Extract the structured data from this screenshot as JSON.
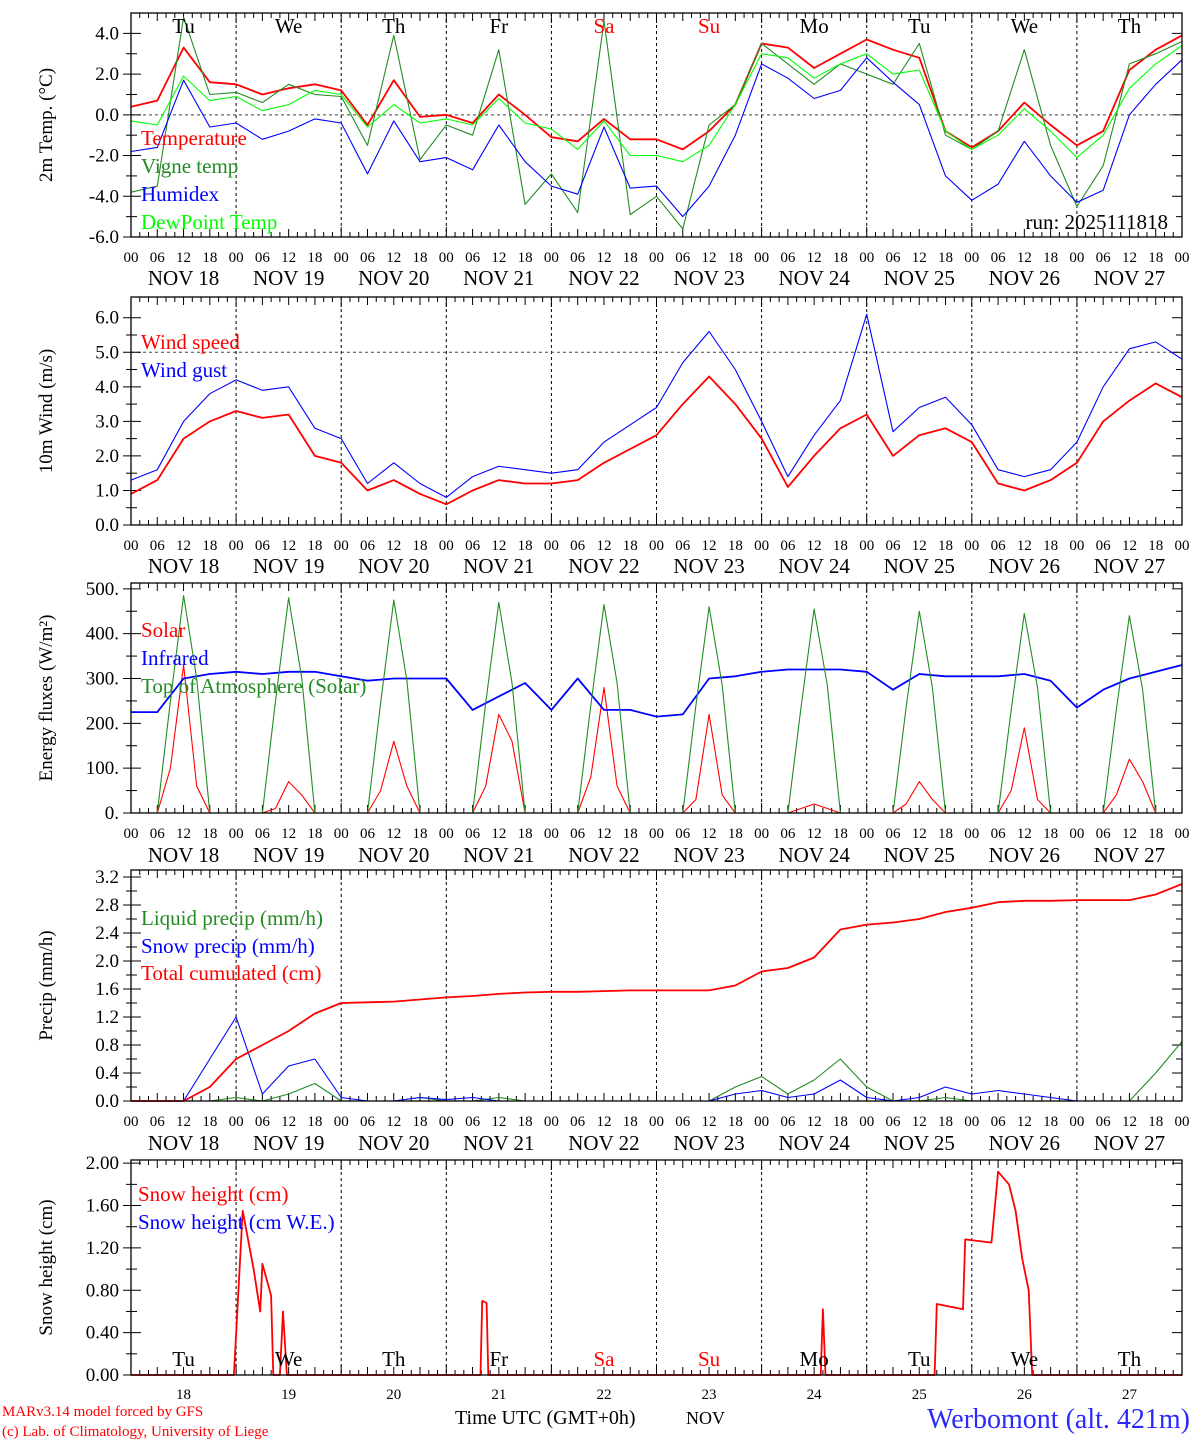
{
  "x_axis": {
    "hour_labels": [
      "00",
      "06",
      "12",
      "18"
    ],
    "end_hour_label": "00",
    "date_labels": [
      "NOV 18",
      "NOV 19",
      "NOV 20",
      "NOV 21",
      "NOV 22",
      "NOV 23",
      "NOV 24",
      "NOV 25",
      "NOV 26",
      "NOV 27"
    ],
    "day_numbers": [
      "18",
      "19",
      "20",
      "21",
      "22",
      "23",
      "24",
      "25",
      "26",
      "27"
    ],
    "day_names": [
      {
        "label": "Tu",
        "color": "#000000"
      },
      {
        "label": "We",
        "color": "#000000"
      },
      {
        "label": "Th",
        "color": "#000000"
      },
      {
        "label": "Fr",
        "color": "#000000"
      },
      {
        "label": "Sa",
        "color": "#ff0000"
      },
      {
        "label": "Su",
        "color": "#ff0000"
      },
      {
        "label": "Mo",
        "color": "#000000"
      },
      {
        "label": "Tu",
        "color": "#000000"
      },
      {
        "label": "We",
        "color": "#000000"
      },
      {
        "label": "Th",
        "color": "#000000"
      }
    ],
    "title": "Time UTC (GMT+0h)",
    "month": "NOV",
    "range_hours": [
      0,
      240
    ]
  },
  "footer": {
    "credit_model": "MARv3.14 model forced by GFS",
    "credit_lab": "(c) Lab. of Climatology, University of Liege",
    "station": "Werbomont (alt. 421m)"
  },
  "chart_data": [
    {
      "type": "line",
      "ylabel": "2m Temp. (°C)",
      "ylim": [
        -6,
        5
      ],
      "yticks": [
        "-6.0",
        "-4.0",
        "-2.0",
        "0.0",
        "2.0",
        "4.0"
      ],
      "ytick_values": [
        -6,
        -4,
        -2,
        0,
        2,
        4
      ],
      "reference_line": 0,
      "annotation": "run: 2025111818",
      "series": [
        {
          "name": "Temperature",
          "color": "#ff0000",
          "step_hours": 6,
          "values": [
            0.4,
            0.7,
            3.3,
            1.6,
            1.5,
            1.0,
            1.3,
            1.5,
            1.2,
            -0.5,
            1.7,
            -0.1,
            0.0,
            -0.4,
            1.0,
            0.0,
            -1.1,
            -1.3,
            -0.2,
            -1.2,
            -1.2,
            -1.7,
            -0.8,
            0.5,
            3.5,
            3.3,
            2.3,
            3.0,
            3.7,
            3.2,
            2.8,
            -0.8,
            -1.6,
            -0.8,
            0.6,
            -0.5,
            -1.5,
            -0.8,
            2.2,
            3.2,
            3.9
          ]
        },
        {
          "name": "Vigne temp",
          "color": "#228b22",
          "step_hours": 6,
          "values": [
            -3.8,
            -3.5,
            4.8,
            1.0,
            1.1,
            0.6,
            1.5,
            1.0,
            0.9,
            -1.5,
            3.9,
            -2.2,
            -0.5,
            -1.0,
            3.2,
            -4.4,
            -2.9,
            -4.8,
            4.6,
            -4.9,
            -4.0,
            -5.6,
            -0.5,
            0.5,
            3.5,
            2.5,
            1.5,
            2.5,
            2.0,
            1.5,
            3.5,
            -1.0,
            -1.7,
            -0.8,
            3.2,
            -1.5,
            -4.5,
            -2.5,
            2.5,
            3.0,
            3.6
          ]
        },
        {
          "name": "Humidex",
          "color": "#0000ff",
          "step_hours": 6,
          "values": [
            -1.8,
            -1.6,
            1.7,
            -0.6,
            -0.4,
            -1.2,
            -0.8,
            -0.2,
            -0.4,
            -2.9,
            -0.3,
            -2.3,
            -2.1,
            -2.7,
            -0.5,
            -2.3,
            -3.5,
            -3.9,
            -0.6,
            -3.6,
            -3.5,
            -5.0,
            -3.5,
            -1.0,
            2.5,
            1.8,
            0.8,
            1.2,
            2.8,
            1.6,
            0.5,
            -3.0,
            -4.2,
            -3.4,
            -1.3,
            -3.0,
            -4.3,
            -3.7,
            0.0,
            1.5,
            2.7
          ]
        },
        {
          "name": "DewPoint Temp",
          "color": "#00ff00",
          "step_hours": 6,
          "values": [
            -0.3,
            -0.5,
            1.9,
            0.7,
            0.9,
            0.2,
            0.5,
            1.2,
            1.0,
            -0.6,
            0.5,
            -0.4,
            -0.2,
            -0.5,
            0.8,
            -0.4,
            -0.7,
            -1.7,
            -0.3,
            -2.0,
            -2.0,
            -2.3,
            -1.5,
            0.5,
            3.0,
            2.8,
            1.8,
            2.5,
            3.0,
            2.0,
            2.2,
            -0.8,
            -1.7,
            -1.0,
            0.3,
            -0.8,
            -2.1,
            -1.0,
            1.3,
            2.5,
            3.4
          ]
        }
      ]
    },
    {
      "type": "line",
      "ylabel": "10m Wind (m/s)",
      "ylim": [
        0,
        6.6
      ],
      "yticks": [
        "0.0",
        "1.0",
        "2.0",
        "3.0",
        "4.0",
        "5.0",
        "6.0"
      ],
      "ytick_values": [
        0,
        1,
        2,
        3,
        4,
        5,
        6
      ],
      "reference_line": 5,
      "series": [
        {
          "name": "Wind speed",
          "color": "#ff0000",
          "step_hours": 6,
          "values": [
            0.9,
            1.3,
            2.5,
            3.0,
            3.3,
            3.1,
            3.2,
            2.0,
            1.8,
            1.0,
            1.3,
            0.9,
            0.6,
            1.0,
            1.3,
            1.2,
            1.2,
            1.3,
            1.8,
            2.2,
            2.6,
            3.5,
            4.3,
            3.5,
            2.5,
            1.1,
            2.0,
            2.8,
            3.2,
            2.0,
            2.6,
            2.8,
            2.4,
            1.2,
            1.0,
            1.3,
            1.8,
            3.0,
            3.6,
            4.1,
            3.7
          ]
        },
        {
          "name": "Wind gust",
          "color": "#0000ff",
          "step_hours": 6,
          "values": [
            1.3,
            1.6,
            3.0,
            3.8,
            4.2,
            3.9,
            4.0,
            2.8,
            2.5,
            1.2,
            1.8,
            1.2,
            0.8,
            1.4,
            1.7,
            1.6,
            1.5,
            1.6,
            2.4,
            2.9,
            3.4,
            4.7,
            5.6,
            4.5,
            3.0,
            1.4,
            2.6,
            3.6,
            6.1,
            2.7,
            3.4,
            3.7,
            2.9,
            1.6,
            1.4,
            1.6,
            2.4,
            4.0,
            5.1,
            5.3,
            4.8
          ]
        }
      ]
    },
    {
      "type": "line",
      "ylabel": "Energy fluxes (W/m²)",
      "ylim": [
        0,
        513
      ],
      "yticks": [
        "0.",
        "100.",
        "200.",
        "300.",
        "400.",
        "500."
      ],
      "ytick_values": [
        0,
        100,
        200,
        300,
        400,
        500
      ],
      "series": [
        {
          "name": "Solar",
          "color": "#ff0000",
          "step_hours": 3,
          "values": [
            0,
            0,
            0,
            100,
            330,
            60,
            0,
            0,
            0,
            0,
            0,
            10,
            70,
            40,
            0,
            0,
            0,
            0,
            0,
            50,
            160,
            60,
            0,
            0,
            0,
            0,
            0,
            60,
            220,
            160,
            0,
            0,
            0,
            0,
            0,
            80,
            280,
            60,
            0,
            0,
            0,
            0,
            0,
            30,
            220,
            40,
            0,
            0,
            0,
            0,
            0,
            10,
            20,
            10,
            0,
            0,
            0,
            0,
            0,
            20,
            70,
            30,
            0,
            0,
            0,
            0,
            0,
            50,
            190,
            30,
            0,
            0,
            0,
            0,
            0,
            40,
            120,
            70,
            0,
            0,
            0
          ]
        },
        {
          "name": "Infrared",
          "color": "#0000ff",
          "step_hours": 6,
          "values": [
            225,
            225,
            300,
            310,
            315,
            310,
            315,
            315,
            305,
            295,
            300,
            300,
            300,
            230,
            260,
            290,
            230,
            300,
            230,
            230,
            215,
            220,
            300,
            305,
            315,
            320,
            320,
            320,
            315,
            275,
            310,
            305,
            305,
            305,
            310,
            295,
            235,
            275,
            300,
            315,
            330
          ]
        },
        {
          "name": "Top of Atmosphere (Solar)",
          "color": "#228b22",
          "step_hours": 3,
          "values": [
            0,
            0,
            0,
            250,
            485,
            300,
            0,
            0,
            0,
            0,
            0,
            250,
            480,
            300,
            0,
            0,
            0,
            0,
            0,
            245,
            475,
            295,
            0,
            0,
            0,
            0,
            0,
            245,
            470,
            290,
            0,
            0,
            0,
            0,
            0,
            240,
            465,
            290,
            0,
            0,
            0,
            0,
            0,
            240,
            460,
            285,
            0,
            0,
            0,
            0,
            0,
            235,
            455,
            285,
            0,
            0,
            0,
            0,
            0,
            235,
            450,
            280,
            0,
            0,
            0,
            0,
            0,
            230,
            445,
            280,
            0,
            0,
            0,
            0,
            0,
            230,
            440,
            275,
            0,
            0,
            0
          ]
        }
      ]
    },
    {
      "type": "line",
      "ylabel": "Precip (mm/h)",
      "ylim": [
        0,
        3.3
      ],
      "yticks": [
        "0.0",
        "0.4",
        "0.8",
        "1.2",
        "1.6",
        "2.0",
        "2.4",
        "2.8",
        "3.2"
      ],
      "ytick_values": [
        0,
        0.4,
        0.8,
        1.2,
        1.6,
        2.0,
        2.4,
        2.8,
        3.2
      ],
      "series": [
        {
          "name": "Liquid precip (mm/h)",
          "color": "#228b22",
          "step_hours": 6,
          "values": [
            0,
            0,
            0,
            0,
            0.05,
            0,
            0.1,
            0.25,
            0,
            0,
            0,
            0.05,
            0,
            0,
            0.05,
            0,
            0,
            0,
            0,
            0,
            0,
            0,
            0,
            0.2,
            0.35,
            0.1,
            0.3,
            0.6,
            0.2,
            0,
            0,
            0.05,
            0,
            0,
            0,
            0,
            0,
            0,
            0,
            0.4,
            0.85
          ]
        },
        {
          "name": "Snow precip (mm/h)",
          "color": "#0000ff",
          "step_hours": 6,
          "values": [
            0,
            0,
            0,
            0.6,
            1.2,
            0.1,
            0.5,
            0.6,
            0.05,
            0,
            0,
            0.05,
            0.02,
            0.05,
            0,
            0,
            0,
            0,
            0,
            0,
            0,
            0,
            0,
            0.1,
            0.15,
            0.05,
            0.1,
            0.3,
            0.05,
            0,
            0.05,
            0.2,
            0.1,
            0.15,
            0.1,
            0.05,
            0,
            0,
            0,
            0,
            0
          ]
        },
        {
          "name": "Total cumulated (cm)",
          "color": "#ff0000",
          "step_hours": 6,
          "values": [
            0,
            0,
            0,
            0.2,
            0.6,
            0.8,
            1.0,
            1.25,
            1.4,
            1.41,
            1.42,
            1.45,
            1.48,
            1.5,
            1.53,
            1.55,
            1.56,
            1.56,
            1.57,
            1.58,
            1.58,
            1.58,
            1.58,
            1.65,
            1.85,
            1.9,
            2.05,
            2.45,
            2.52,
            2.55,
            2.6,
            2.7,
            2.76,
            2.84,
            2.86,
            2.86,
            2.87,
            2.87,
            2.87,
            2.95,
            3.1
          ]
        }
      ]
    },
    {
      "type": "line",
      "ylabel": "Snow height (cm)",
      "ylim": [
        0,
        2.03
      ],
      "yticks": [
        "0.00",
        "0.40",
        "0.80",
        "1.20",
        "1.60",
        "2.00"
      ],
      "ytick_values": [
        0,
        0.4,
        0.8,
        1.2,
        1.6,
        2.0
      ],
      "series": [
        {
          "name": "Snow height (cm W.E.)",
          "color": "#0000ff",
          "points": [
            [
              0,
              0
            ],
            [
              240,
              0
            ]
          ]
        },
        {
          "name": "Snow height (cm)",
          "color": "#ff0000",
          "points": [
            [
              0,
              0
            ],
            [
              23.5,
              0
            ],
            [
              25.5,
              1.55
            ],
            [
              28,
              1.0
            ],
            [
              29.5,
              0.6
            ],
            [
              30,
              1.05
            ],
            [
              32,
              0.75
            ],
            [
              32.5,
              0
            ],
            [
              34,
              0
            ],
            [
              34.7,
              0.6
            ],
            [
              35.6,
              0
            ],
            [
              79.8,
              0
            ],
            [
              80.2,
              0.7
            ],
            [
              81.2,
              0.68
            ],
            [
              81.6,
              0
            ],
            [
              157.5,
              0
            ],
            [
              158,
              0.62
            ],
            [
              158.6,
              0
            ],
            [
              183.5,
              0
            ],
            [
              184,
              0.67
            ],
            [
              190,
              0.62
            ],
            [
              190.5,
              1.28
            ],
            [
              196.5,
              1.25
            ],
            [
              198,
              1.92
            ],
            [
              200.5,
              1.8
            ],
            [
              202,
              1.55
            ],
            [
              203.5,
              1.1
            ],
            [
              205,
              0.8
            ],
            [
              205.8,
              0
            ],
            [
              240,
              0
            ]
          ]
        }
      ],
      "legend_order": [
        1,
        0
      ]
    }
  ]
}
